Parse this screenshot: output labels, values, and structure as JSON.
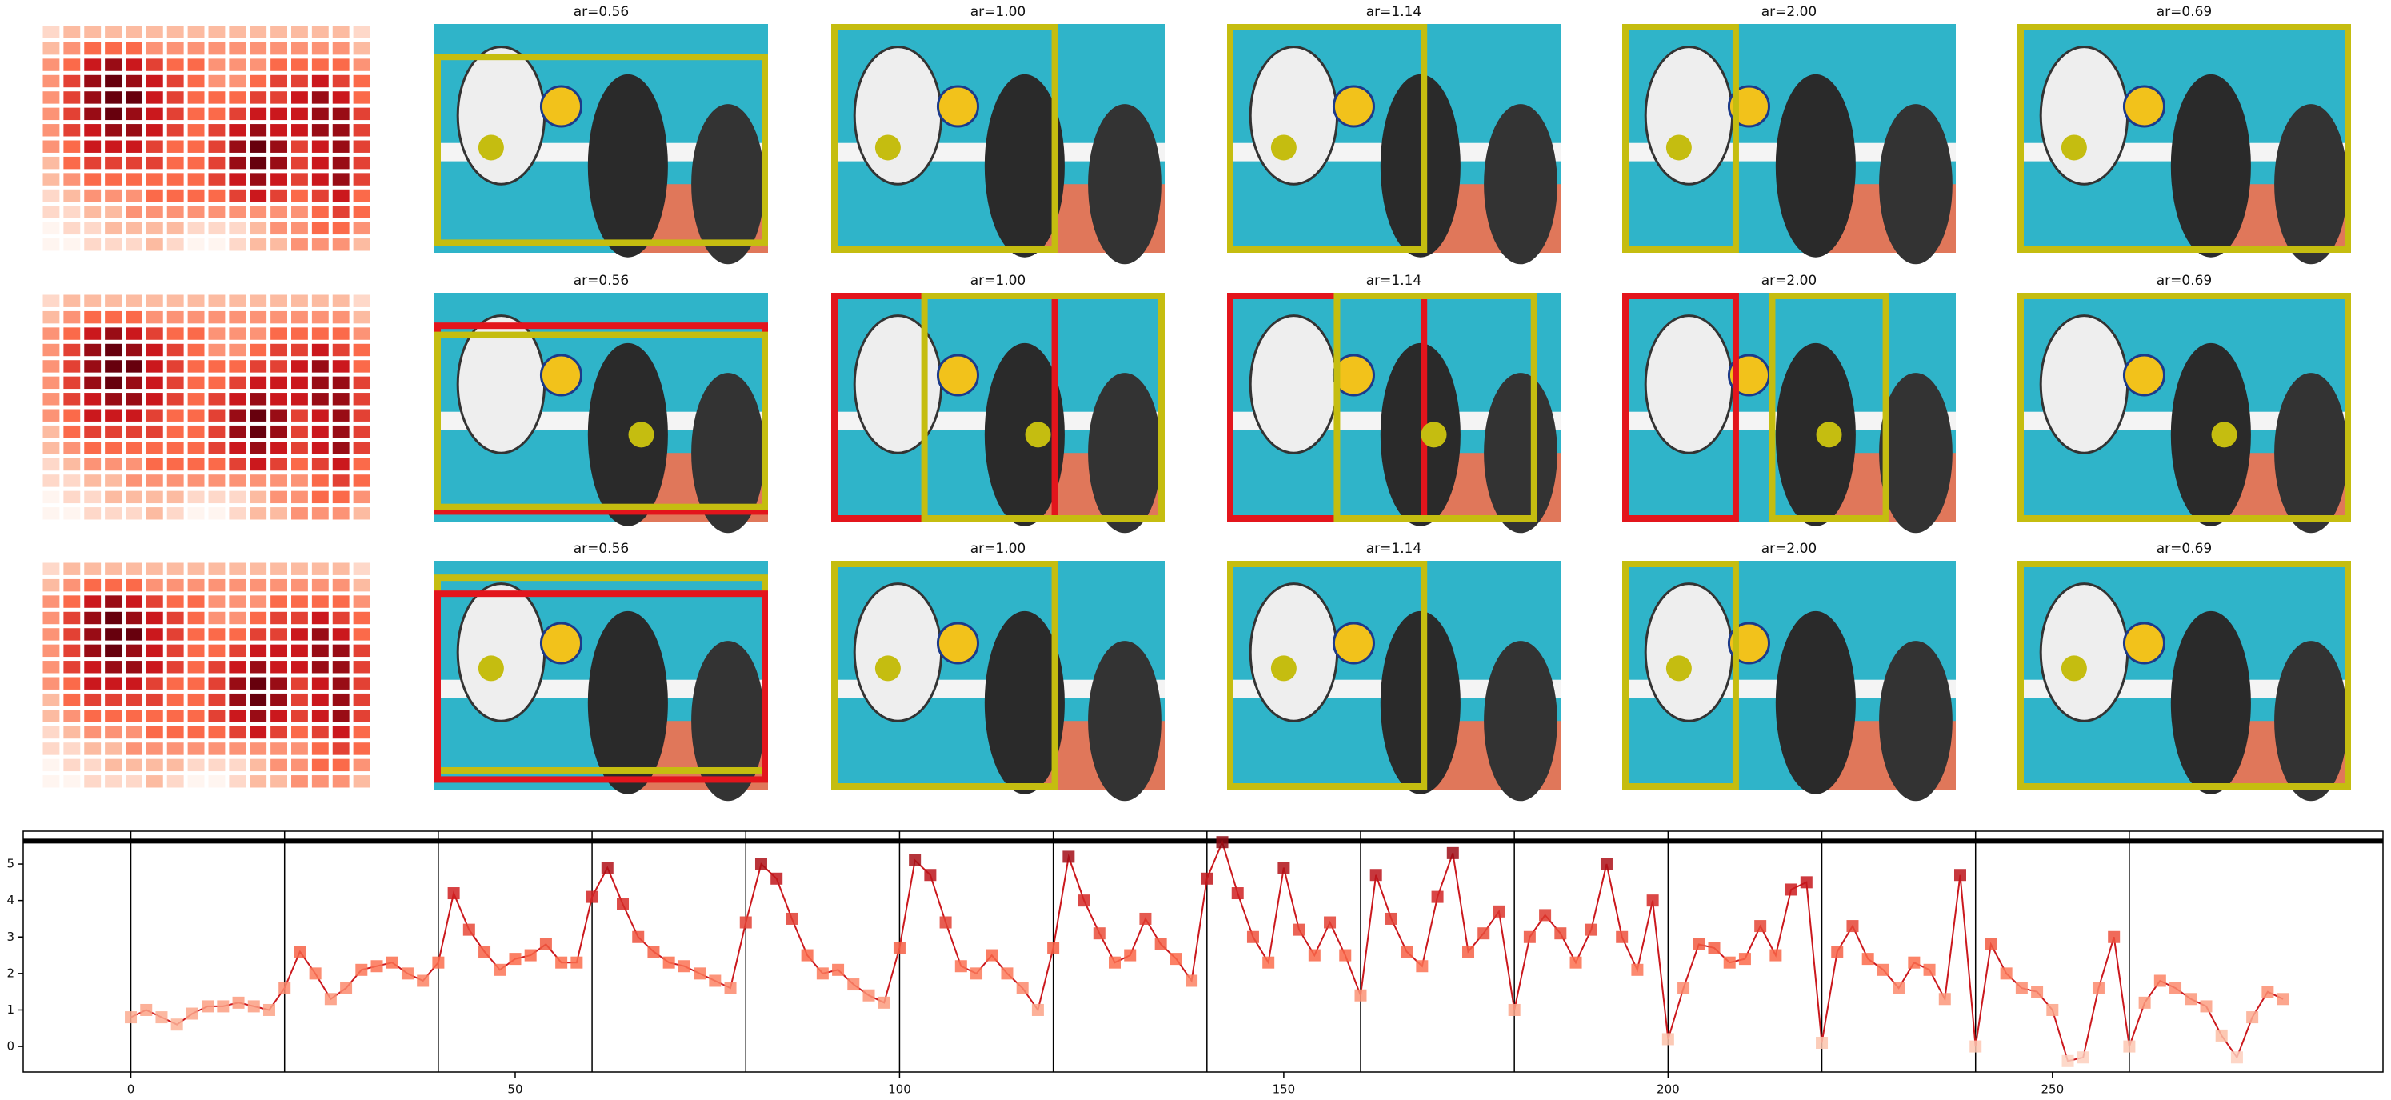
{
  "image_grid": {
    "titles": [
      [
        "ar=0.56",
        "ar=1.00",
        "ar=1.14",
        "ar=2.00",
        "ar=0.69"
      ],
      [
        "ar=0.56",
        "ar=1.00",
        "ar=1.14",
        "ar=2.00",
        "ar=0.69"
      ],
      [
        "ar=0.56",
        "ar=1.00",
        "ar=1.14",
        "ar=2.00",
        "ar=0.69"
      ]
    ],
    "heatmap": [
      [
        1,
        2,
        2,
        2,
        2,
        2,
        2,
        2,
        2,
        2,
        2,
        2,
        2,
        2,
        2,
        1
      ],
      [
        2,
        3,
        4,
        4,
        4,
        3,
        3,
        3,
        3,
        3,
        3,
        3,
        3,
        3,
        3,
        2
      ],
      [
        3,
        4,
        6,
        7,
        6,
        5,
        4,
        4,
        3,
        3,
        3,
        4,
        4,
        4,
        4,
        3
      ],
      [
        3,
        5,
        7,
        8,
        7,
        6,
        5,
        4,
        3,
        3,
        4,
        5,
        5,
        6,
        5,
        4
      ],
      [
        3,
        5,
        7,
        8,
        8,
        6,
        5,
        4,
        4,
        4,
        5,
        5,
        6,
        7,
        6,
        4
      ],
      [
        3,
        5,
        7,
        8,
        7,
        6,
        5,
        4,
        4,
        5,
        6,
        6,
        6,
        7,
        7,
        5
      ],
      [
        3,
        5,
        6,
        7,
        7,
        6,
        5,
        4,
        5,
        6,
        7,
        6,
        6,
        7,
        7,
        5
      ],
      [
        3,
        4,
        6,
        6,
        6,
        5,
        4,
        4,
        5,
        7,
        8,
        7,
        5,
        6,
        7,
        5
      ],
      [
        2,
        4,
        5,
        5,
        5,
        5,
        4,
        4,
        5,
        7,
        8,
        7,
        5,
        6,
        7,
        5
      ],
      [
        2,
        3,
        4,
        4,
        4,
        4,
        4,
        4,
        5,
        6,
        7,
        6,
        5,
        6,
        7,
        5
      ],
      [
        1,
        2,
        3,
        3,
        3,
        4,
        4,
        4,
        4,
        5,
        6,
        5,
        4,
        5,
        6,
        4
      ],
      [
        1,
        1,
        2,
        2,
        3,
        3,
        3,
        3,
        3,
        3,
        3,
        3,
        3,
        4,
        5,
        4
      ],
      [
        0,
        1,
        1,
        2,
        2,
        2,
        2,
        1,
        1,
        1,
        2,
        3,
        3,
        4,
        4,
        3
      ],
      [
        0,
        0,
        1,
        1,
        1,
        2,
        1,
        0,
        0,
        1,
        2,
        2,
        3,
        3,
        3,
        2
      ]
    ],
    "cmap": [
      "#fff5f0",
      "#fcbba1",
      "#fb6a4a",
      "#cb181d",
      "#67000d"
    ],
    "box_colors": [
      "#c5bd10",
      "#e3151c"
    ]
  },
  "chart_data": {
    "type": "line",
    "x": [
      0,
      2,
      4,
      6,
      8,
      10,
      12,
      14,
      16,
      18,
      20,
      22,
      24,
      26,
      28,
      30,
      32,
      34,
      36,
      38,
      40,
      42,
      44,
      46,
      48,
      50,
      52,
      54,
      56,
      58,
      60,
      62,
      64,
      66,
      68,
      70,
      72,
      74,
      76,
      78,
      80,
      82,
      84,
      86,
      88,
      90,
      92,
      94,
      96,
      98,
      100,
      102,
      104,
      106,
      108,
      110,
      112,
      114,
      116,
      118,
      120,
      122,
      124,
      126,
      128,
      130,
      132,
      134,
      136,
      138,
      140,
      142,
      144,
      146,
      148,
      150,
      152,
      154,
      156,
      158,
      160,
      162,
      164,
      166,
      168,
      170,
      172,
      174,
      176,
      178,
      180,
      182,
      184,
      186,
      188,
      190,
      192,
      194,
      196,
      198,
      200,
      202,
      204,
      206,
      208,
      210,
      212,
      214,
      216,
      218,
      220,
      222,
      224,
      226,
      228,
      230,
      232,
      234,
      236,
      238,
      240,
      242,
      244,
      246,
      248,
      250,
      252,
      254,
      256,
      258,
      260,
      262,
      264,
      266,
      268,
      270,
      272,
      274,
      276,
      278,
      280
    ],
    "values": [
      0.8,
      1.0,
      0.8,
      0.6,
      0.9,
      1.1,
      1.1,
      1.2,
      1.1,
      1.0,
      1.6,
      2.6,
      2.0,
      1.3,
      1.6,
      2.1,
      2.2,
      2.3,
      2.0,
      1.8,
      2.3,
      4.2,
      3.2,
      2.6,
      2.1,
      2.4,
      2.5,
      2.8,
      2.3,
      2.3,
      4.1,
      4.9,
      3.9,
      3.0,
      2.6,
      2.3,
      2.2,
      2.0,
      1.8,
      1.6,
      3.4,
      5.0,
      4.6,
      3.5,
      2.5,
      2.0,
      2.1,
      1.7,
      1.4,
      1.2,
      2.7,
      5.1,
      4.7,
      3.4,
      2.2,
      2.0,
      2.5,
      2.0,
      1.6,
      1.0,
      2.7,
      5.2,
      4.0,
      3.1,
      2.3,
      2.5,
      3.5,
      2.8,
      2.4,
      1.8,
      4.6,
      5.6,
      4.2,
      3.0,
      2.3,
      4.9,
      3.2,
      2.5,
      3.4,
      2.5,
      1.4,
      4.7,
      3.5,
      2.6,
      2.2,
      4.1,
      5.3,
      2.6,
      3.1,
      3.7,
      1.0,
      3.0,
      3.6,
      3.1,
      2.3,
      3.2,
      5.0,
      3.0,
      2.1,
      4.0,
      0.2,
      1.6,
      2.8,
      2.7,
      2.3,
      2.4,
      3.3,
      2.5,
      4.3,
      4.5,
      0.1,
      2.6,
      3.3,
      2.4,
      2.1,
      1.6,
      2.3,
      2.1,
      1.3,
      4.7,
      0.0,
      2.8,
      2.0,
      1.6,
      1.5,
      1.0,
      -0.4,
      -0.3,
      1.6,
      3.0,
      0.0,
      1.2,
      1.8,
      1.6,
      1.3,
      1.1,
      0.3,
      -0.3,
      0.8,
      1.5,
      1.3
    ],
    "color": "#cb181d",
    "xlim": [
      -14,
      293
    ],
    "ylim": [
      -0.7,
      5.9
    ],
    "xticks": [
      0,
      50,
      100,
      150,
      200,
      250
    ],
    "yticks": [
      0,
      1,
      2,
      3,
      4,
      5
    ],
    "vlines": [
      0,
      20,
      40,
      60,
      80,
      100,
      120,
      140,
      160,
      180,
      200,
      220,
      240,
      260
    ],
    "hline": 5.63
  }
}
